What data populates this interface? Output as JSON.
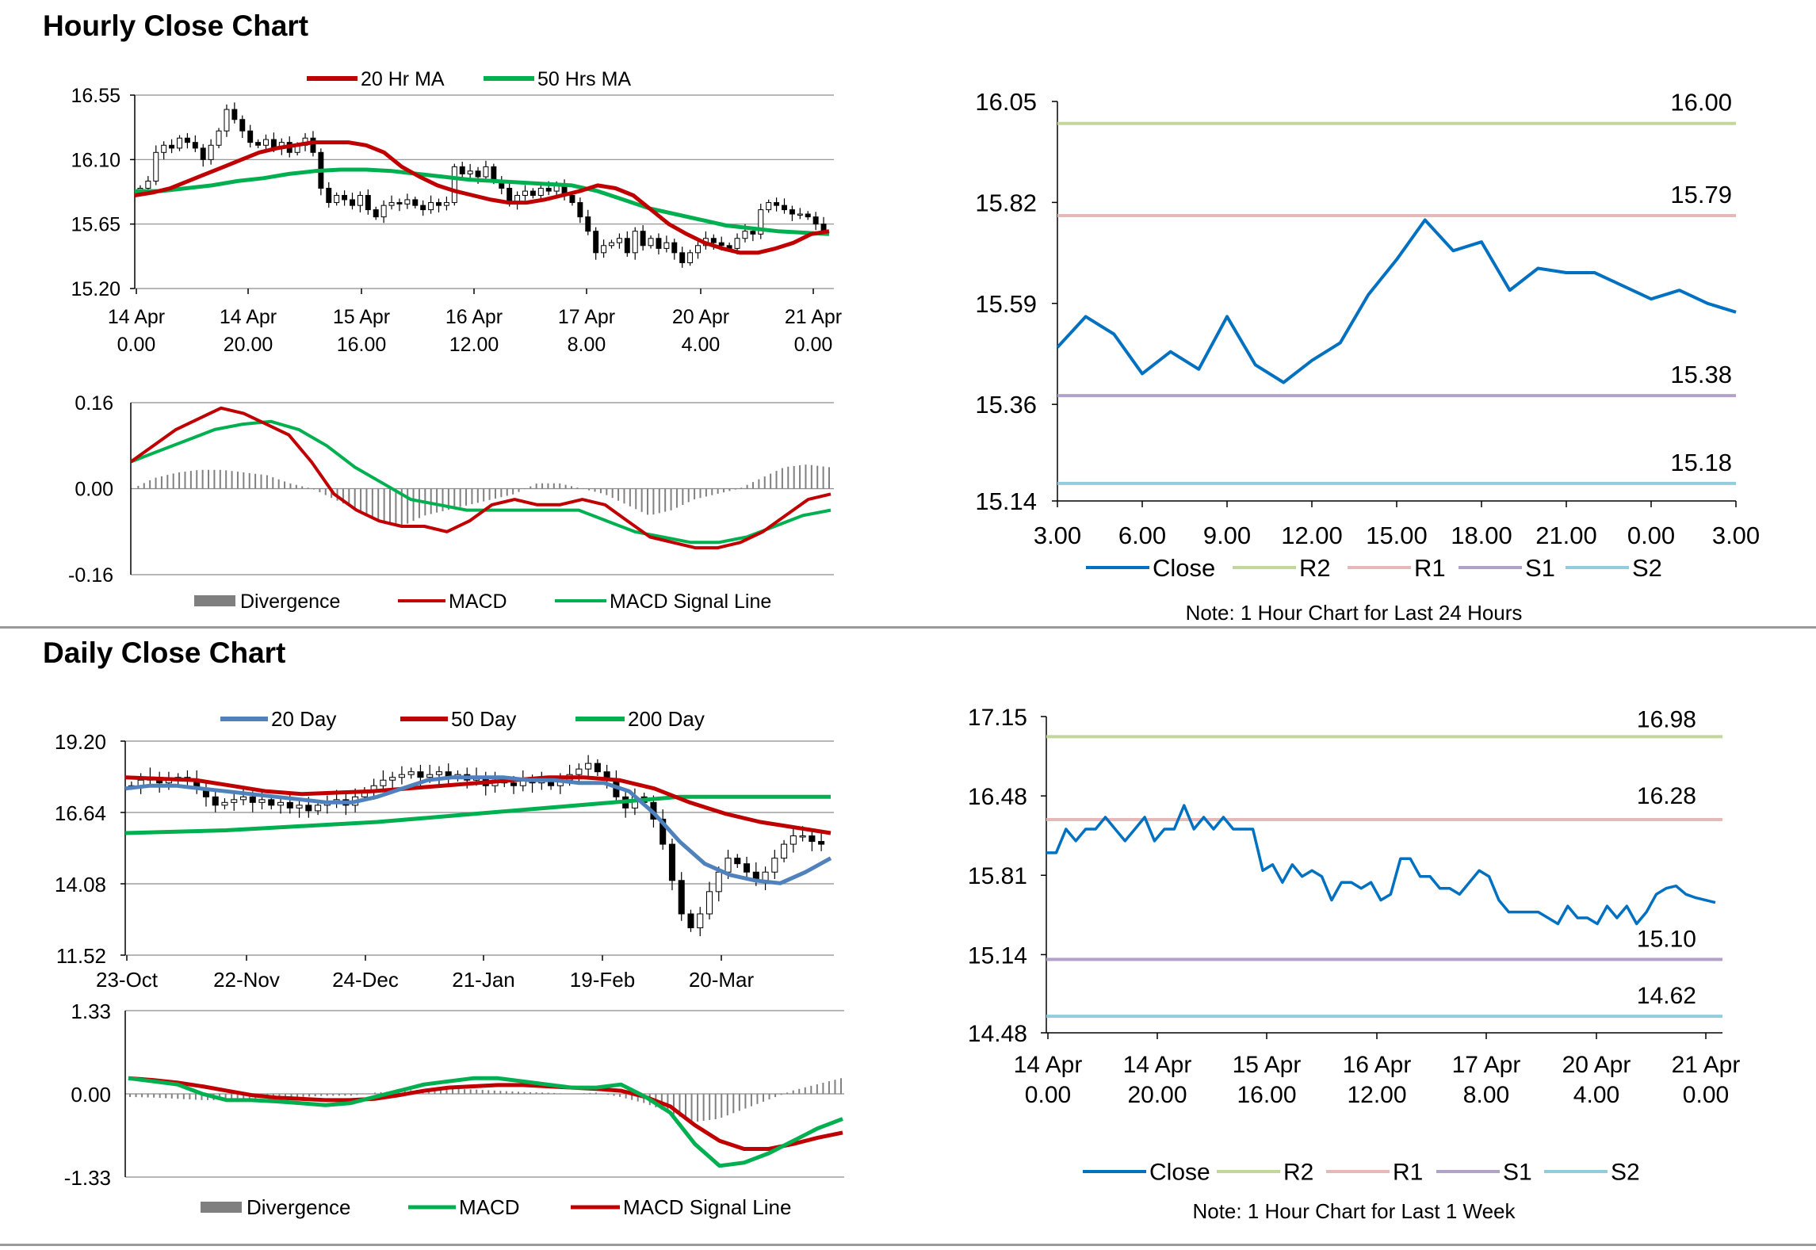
{
  "sections": {
    "hourly_title": "Hourly Close Chart",
    "daily_title": "Daily Close Chart"
  },
  "colors": {
    "red": "#C00000",
    "green": "#00B050",
    "blue": "#0070C0",
    "steel": "#4F81BD",
    "gray": "#808080",
    "r2": "#C3D69B",
    "r1": "#E6B9B8",
    "s1": "#B3A2C7",
    "s2": "#93CDDD"
  },
  "chart_data": [
    {
      "id": "hourly_price",
      "type": "candlestick",
      "legend": [
        "20 Hr MA",
        "50 Hrs MA"
      ],
      "ylim": [
        15.2,
        16.55
      ],
      "yticks": [
        "16.55",
        "16.10",
        "15.65",
        "15.20"
      ],
      "xticks": [
        [
          "14 Apr",
          "0.00"
        ],
        [
          "14 Apr",
          "20.00"
        ],
        [
          "15 Apr",
          "16.00"
        ],
        [
          "16 Apr",
          "12.00"
        ],
        [
          "17 Apr",
          "8.00"
        ],
        [
          "20 Apr",
          "4.00"
        ],
        [
          "21 Apr",
          "0.00"
        ]
      ],
      "close": [
        15.9,
        15.95,
        16.15,
        16.2,
        16.18,
        16.25,
        16.22,
        16.18,
        16.1,
        16.2,
        16.3,
        16.45,
        16.38,
        16.3,
        16.22,
        16.2,
        16.24,
        16.18,
        16.22,
        16.15,
        16.2,
        16.25,
        16.15,
        15.9,
        15.8,
        15.85,
        15.82,
        15.78,
        15.85,
        15.75,
        15.7,
        15.78,
        15.8,
        15.79,
        15.82,
        15.78,
        15.75,
        15.8,
        15.78,
        15.8,
        16.05,
        16.0,
        16.02,
        15.98,
        16.05,
        15.95,
        15.9,
        15.8,
        15.85,
        15.88,
        15.85,
        15.9,
        15.88,
        15.92,
        15.85,
        15.8,
        15.7,
        15.6,
        15.45,
        15.5,
        15.52,
        15.55,
        15.45,
        15.6,
        15.5,
        15.55,
        15.48,
        15.52,
        15.45,
        15.38,
        15.45,
        15.5,
        15.55,
        15.52,
        15.5,
        15.48,
        15.55,
        15.6,
        15.58,
        15.75,
        15.8,
        15.78,
        15.75,
        15.72,
        15.72,
        15.7,
        15.65,
        15.6
      ],
      "ma20": [
        15.85,
        15.87,
        15.9,
        15.95,
        16.0,
        16.05,
        16.1,
        16.15,
        16.18,
        16.2,
        16.22,
        16.22,
        16.22,
        16.2,
        16.15,
        16.05,
        15.98,
        15.92,
        15.88,
        15.85,
        15.82,
        15.8,
        15.8,
        15.82,
        15.85,
        15.88,
        15.92,
        15.9,
        15.85,
        15.75,
        15.65,
        15.58,
        15.52,
        15.48,
        15.45,
        15.45,
        15.48,
        15.52,
        15.58,
        15.6
      ],
      "ma50": [
        15.88,
        15.88,
        15.9,
        15.92,
        15.95,
        15.97,
        16.0,
        16.02,
        16.03,
        16.03,
        16.02,
        16.0,
        15.98,
        15.96,
        15.95,
        15.94,
        15.93,
        15.92,
        15.88,
        15.82,
        15.76,
        15.72,
        15.68,
        15.64,
        15.62,
        15.6,
        15.59,
        15.58
      ]
    },
    {
      "id": "hourly_macd",
      "type": "macd",
      "legend": [
        "Divergence",
        "MACD",
        "MACD Signal Line"
      ],
      "ylim": [
        -0.16,
        0.16
      ],
      "yticks": [
        "0.16",
        "0.00",
        "-0.16"
      ],
      "macd": [
        0.05,
        0.08,
        0.11,
        0.13,
        0.15,
        0.14,
        0.12,
        0.1,
        0.05,
        -0.01,
        -0.04,
        -0.06,
        -0.07,
        -0.07,
        -0.08,
        -0.06,
        -0.03,
        -0.02,
        -0.03,
        -0.03,
        -0.02,
        -0.03,
        -0.06,
        -0.09,
        -0.1,
        -0.11,
        -0.11,
        -0.1,
        -0.08,
        -0.05,
        -0.02,
        -0.01
      ],
      "signal": [
        0.05,
        0.07,
        0.09,
        0.11,
        0.12,
        0.125,
        0.11,
        0.08,
        0.04,
        0.01,
        -0.02,
        -0.03,
        -0.04,
        -0.04,
        -0.04,
        -0.04,
        -0.04,
        -0.06,
        -0.08,
        -0.09,
        -0.1,
        -0.1,
        -0.09,
        -0.07,
        -0.05,
        -0.04
      ],
      "divergence": [
        0.0,
        0.02,
        0.03,
        0.035,
        0.035,
        0.03,
        0.025,
        0.01,
        0.0,
        -0.02,
        -0.04,
        -0.06,
        -0.07,
        -0.05,
        -0.04,
        -0.03,
        -0.02,
        -0.01,
        0.01,
        0.01,
        0.0,
        -0.01,
        -0.03,
        -0.05,
        -0.04,
        -0.02,
        -0.01,
        0.0,
        0.02,
        0.04,
        0.045,
        0.04
      ]
    },
    {
      "id": "hourly_24h",
      "type": "line",
      "ylim": [
        15.14,
        16.05
      ],
      "yticks": [
        "16.05",
        "15.82",
        "15.59",
        "15.36",
        "15.14"
      ],
      "xticks": [
        "3.00",
        "6.00",
        "9.00",
        "12.00",
        "15.00",
        "18.00",
        "21.00",
        "0.00",
        "3.00"
      ],
      "close": [
        15.49,
        15.56,
        15.52,
        15.43,
        15.48,
        15.44,
        15.56,
        15.45,
        15.41,
        15.46,
        15.5,
        15.61,
        15.69,
        15.78,
        15.71,
        15.73,
        15.62,
        15.67,
        15.66,
        15.66,
        15.63,
        15.6,
        15.62,
        15.59,
        15.57
      ],
      "levels": [
        {
          "name": "R2",
          "value": 16.0,
          "label": "16.00"
        },
        {
          "name": "R1",
          "value": 15.79,
          "label": "15.79"
        },
        {
          "name": "S1",
          "value": 15.38,
          "label": "15.38"
        },
        {
          "name": "S2",
          "value": 15.18,
          "label": "15.18"
        }
      ],
      "legend": [
        "Close",
        "R2",
        "R1",
        "S1",
        "S2"
      ],
      "note": "Note: 1 Hour Chart for Last 24 Hours"
    },
    {
      "id": "daily_price",
      "type": "candlestick",
      "legend": [
        "20 Day",
        "50 Day",
        "200 Day"
      ],
      "ylim": [
        11.52,
        19.2
      ],
      "yticks": [
        "19.20",
        "16.64",
        "14.08",
        "11.52"
      ],
      "xticks": [
        "23-Oct",
        "22-Nov",
        "24-Dec",
        "21-Jan",
        "19-Feb",
        "20-Mar"
      ],
      "close": [
        17.6,
        17.8,
        17.9,
        17.7,
        17.8,
        17.9,
        17.8,
        17.5,
        17.2,
        16.9,
        17.0,
        17.1,
        17.2,
        17.0,
        17.1,
        16.9,
        17.0,
        16.8,
        16.9,
        16.7,
        16.9,
        17.0,
        17.1,
        16.9,
        17.2,
        17.4,
        17.6,
        17.8,
        17.9,
        18.0,
        18.1,
        17.9,
        18.0,
        18.1,
        17.9,
        18.0,
        17.8,
        17.9,
        17.6,
        17.8,
        17.7,
        17.6,
        17.8,
        17.7,
        17.8,
        17.6,
        17.8,
        18.0,
        18.2,
        18.4,
        18.1,
        17.8,
        17.2,
        16.8,
        17.2,
        17.0,
        16.4,
        15.5,
        14.2,
        13.0,
        12.5,
        13.0,
        13.8,
        14.5,
        15.0,
        14.8,
        14.5,
        14.2,
        14.5,
        15.0,
        15.5,
        15.8,
        15.8,
        15.6,
        15.5
      ],
      "ma20": [
        17.5,
        17.6,
        17.6,
        17.5,
        17.4,
        17.3,
        17.2,
        17.1,
        17.0,
        17.0,
        17.2,
        17.5,
        17.8,
        17.9,
        17.9,
        17.9,
        17.8,
        17.8,
        17.7,
        17.7,
        17.4,
        16.6,
        15.6,
        14.8,
        14.4,
        14.2,
        14.1,
        14.5,
        15.0
      ],
      "ma50": [
        17.9,
        17.85,
        17.8,
        17.6,
        17.4,
        17.3,
        17.35,
        17.4,
        17.5,
        17.6,
        17.7,
        17.8,
        17.9,
        17.9,
        17.8,
        17.5,
        17.0,
        16.6,
        16.3,
        16.1,
        15.9
      ],
      "ma200": [
        15.9,
        15.95,
        16.0,
        16.1,
        16.2,
        16.3,
        16.45,
        16.6,
        16.75,
        16.9,
        17.05,
        17.2,
        17.2,
        17.2,
        17.2
      ]
    },
    {
      "id": "daily_macd",
      "type": "macd",
      "legend": [
        "Divergence",
        "MACD",
        "MACD Signal Line"
      ],
      "ylim": [
        -1.33,
        1.33
      ],
      "yticks": [
        "1.33",
        "0.00",
        "-1.33"
      ],
      "macd": [
        0.25,
        0.2,
        0.15,
        0.0,
        -0.1,
        -0.1,
        -0.12,
        -0.15,
        -0.18,
        -0.15,
        -0.05,
        0.05,
        0.15,
        0.2,
        0.25,
        0.25,
        0.2,
        0.15,
        0.1,
        0.1,
        0.15,
        -0.05,
        -0.3,
        -0.8,
        -1.15,
        -1.1,
        -0.95,
        -0.75,
        -0.55,
        -0.4
      ],
      "signal": [
        0.25,
        0.22,
        0.18,
        0.12,
        0.05,
        -0.02,
        -0.06,
        -0.08,
        -0.1,
        -0.1,
        -0.08,
        -0.02,
        0.05,
        0.1,
        0.12,
        0.14,
        0.14,
        0.12,
        0.1,
        0.08,
        0.05,
        -0.05,
        -0.2,
        -0.5,
        -0.75,
        -0.88,
        -0.88,
        -0.8,
        -0.7,
        -0.62
      ],
      "divergence": [
        -0.05,
        -0.06,
        -0.08,
        -0.1,
        -0.1,
        -0.08,
        -0.05,
        -0.05,
        -0.03,
        -0.03,
        0.02,
        0.05,
        0.07,
        0.08,
        0.07,
        0.05,
        0.03,
        0.02,
        0.0,
        0.02,
        -0.05,
        -0.15,
        -0.3,
        -0.45,
        -0.4,
        -0.25,
        -0.1,
        0.05,
        0.15,
        0.25
      ]
    },
    {
      "id": "weekly",
      "type": "line",
      "ylim": [
        14.48,
        17.15
      ],
      "yticks": [
        "17.15",
        "16.48",
        "15.81",
        "15.14",
        "14.48"
      ],
      "xticks": [
        [
          "14 Apr",
          "0.00"
        ],
        [
          "14 Apr",
          "20.00"
        ],
        [
          "15 Apr",
          "16.00"
        ],
        [
          "16 Apr",
          "12.00"
        ],
        [
          "17 Apr",
          "8.00"
        ],
        [
          "20 Apr",
          "4.00"
        ],
        [
          "21 Apr",
          "0.00"
        ]
      ],
      "close": [
        16.0,
        16.0,
        16.2,
        16.1,
        16.2,
        16.2,
        16.3,
        16.2,
        16.1,
        16.2,
        16.3,
        16.1,
        16.2,
        16.2,
        16.4,
        16.2,
        16.3,
        16.2,
        16.3,
        16.2,
        16.2,
        16.2,
        15.85,
        15.9,
        15.75,
        15.9,
        15.8,
        15.85,
        15.8,
        15.6,
        15.75,
        15.75,
        15.7,
        15.75,
        15.6,
        15.65,
        15.95,
        15.95,
        15.8,
        15.8,
        15.7,
        15.7,
        15.65,
        15.75,
        15.85,
        15.8,
        15.6,
        15.5,
        15.5,
        15.5,
        15.5,
        15.45,
        15.4,
        15.55,
        15.45,
        15.45,
        15.4,
        15.55,
        15.45,
        15.55,
        15.4,
        15.5,
        15.65,
        15.7,
        15.72,
        15.65,
        15.62,
        15.6,
        15.58
      ],
      "levels": [
        {
          "name": "R2",
          "value": 16.98,
          "label": "16.98"
        },
        {
          "name": "R1",
          "value": 16.28,
          "label": "16.28"
        },
        {
          "name": "S1",
          "value": 15.1,
          "label": "15.10"
        },
        {
          "name": "S2",
          "value": 14.62,
          "label": "14.62"
        }
      ],
      "legend": [
        "Close",
        "R2",
        "R1",
        "S1",
        "S2"
      ],
      "note": "Note: 1 Hour Chart for Last 1 Week"
    }
  ]
}
